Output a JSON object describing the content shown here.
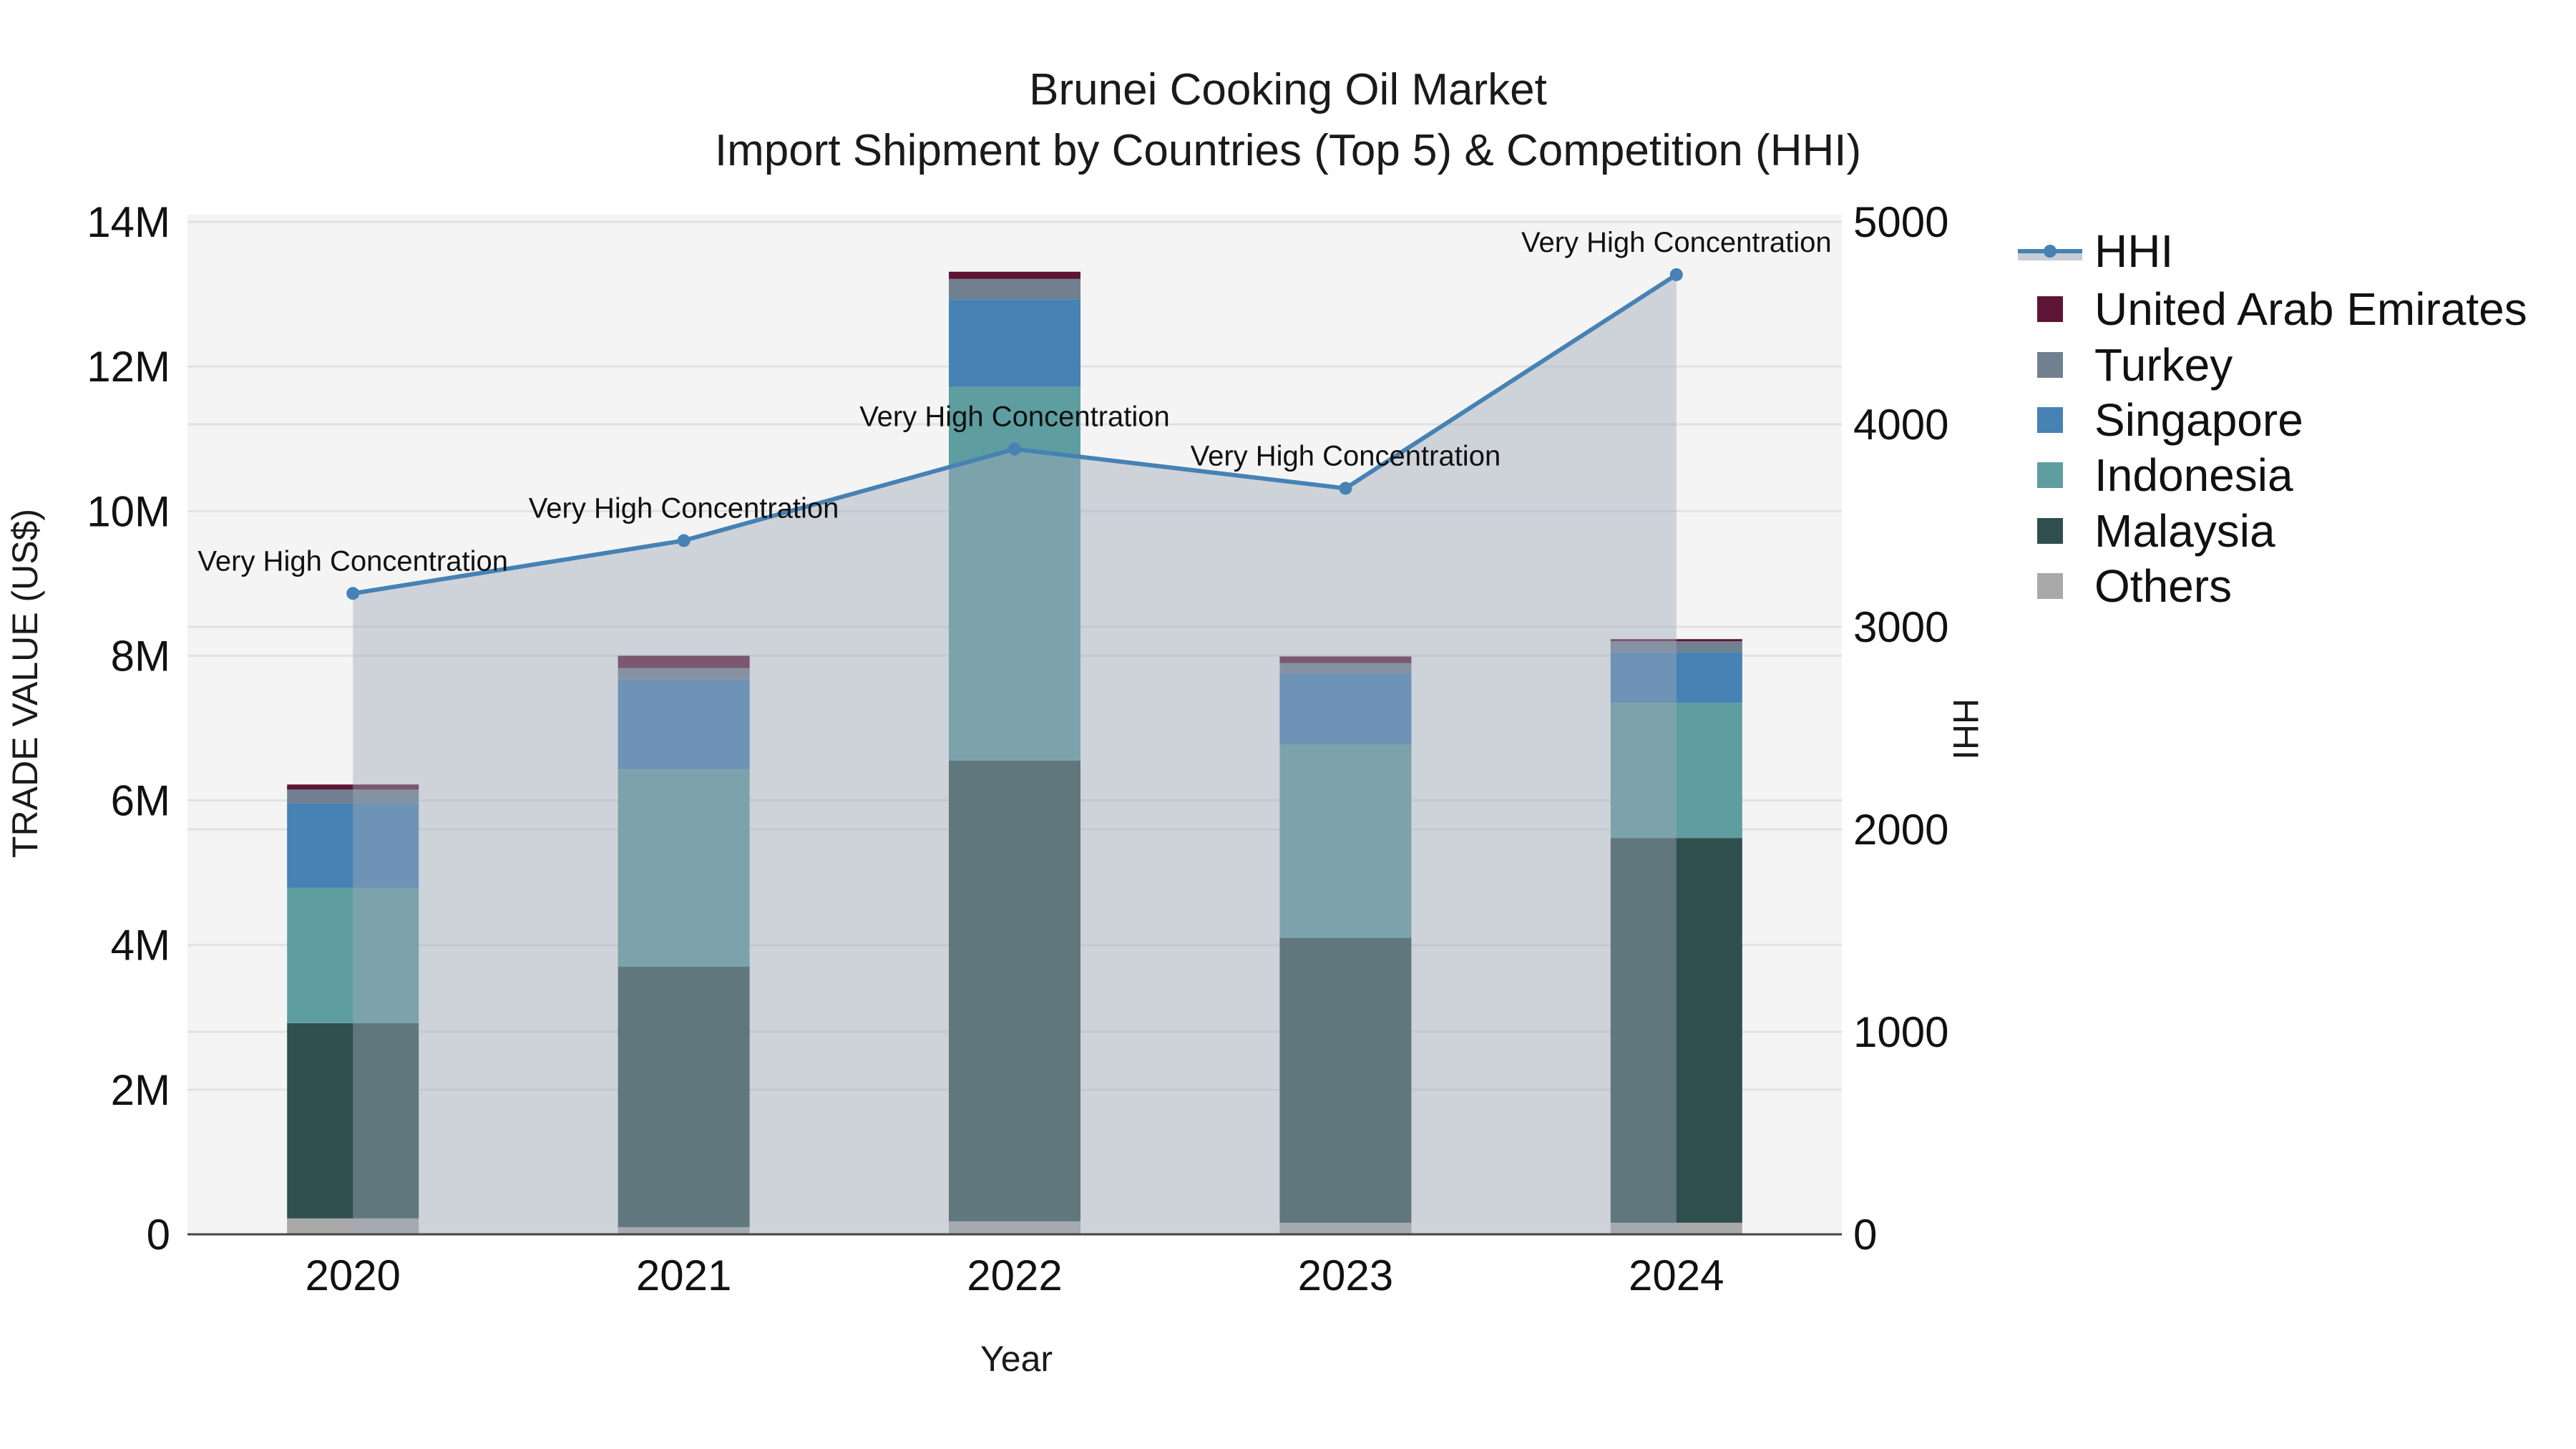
{
  "title": {
    "line1": "Brunei Cooking Oil Market",
    "line2": "Import Shipment by Countries (Top 5) & Competition (HHI)"
  },
  "axes": {
    "x_title": "Year",
    "y_left_title": "TRADE VALUE (US$)",
    "y_right_title": "HHI"
  },
  "legend": {
    "items": [
      {
        "label": "HHI",
        "type": "line",
        "color": "#4682b4"
      },
      {
        "label": "United Arab Emirates",
        "type": "bar",
        "color": "#5e1535"
      },
      {
        "label": "Turkey",
        "type": "bar",
        "color": "#708090"
      },
      {
        "label": "Singapore",
        "type": "bar",
        "color": "#4682b4"
      },
      {
        "label": "Indonesia",
        "type": "bar",
        "color": "#5f9ea0"
      },
      {
        "label": "Malaysia",
        "type": "bar",
        "color": "#2f4f4f"
      },
      {
        "label": "Others",
        "type": "bar",
        "color": "#a9a9a9"
      }
    ]
  },
  "chart_data": {
    "type": "bar",
    "subtype": "stacked bar with line overlay (secondary axis)",
    "title": "Brunei Cooking Oil Market\nImport Shipment by Countries (Top 5) & Competition (HHI)",
    "xlabel": "Year",
    "ylabel": "TRADE VALUE (US$)",
    "y2label": "HHI",
    "categories": [
      "2020",
      "2021",
      "2022",
      "2023",
      "2024"
    ],
    "ylim": [
      0,
      14000000
    ],
    "y_ticks": [
      0,
      2000000,
      4000000,
      6000000,
      8000000,
      10000000,
      12000000,
      14000000
    ],
    "y_tick_labels": [
      "0",
      "2M",
      "4M",
      "6M",
      "8M",
      "10M",
      "12M",
      "14M"
    ],
    "y2lim": [
      0,
      5000
    ],
    "y2_ticks": [
      0,
      1000,
      2000,
      3000,
      4000,
      5000
    ],
    "y2_tick_labels": [
      "0",
      "1000",
      "2000",
      "3000",
      "4000",
      "5000"
    ],
    "grid": true,
    "legend_position": "right",
    "series": [
      {
        "name": "Others",
        "color": "#a9a9a9",
        "values": [
          220000,
          100000,
          180000,
          160000,
          160000
        ]
      },
      {
        "name": "Malaysia",
        "color": "#2f4f4f",
        "values": [
          2700000,
          3600000,
          6370000,
          3940000,
          5320000
        ]
      },
      {
        "name": "Indonesia",
        "color": "#5f9ea0",
        "values": [
          1870000,
          2730000,
          5170000,
          2670000,
          1870000
        ]
      },
      {
        "name": "Singapore",
        "color": "#4682b4",
        "values": [
          1170000,
          1240000,
          1210000,
          990000,
          700000
        ]
      },
      {
        "name": "Turkey",
        "color": "#708090",
        "values": [
          190000,
          160000,
          280000,
          140000,
          150000
        ]
      },
      {
        "name": "United Arab Emirates",
        "color": "#5e1535",
        "values": [
          70000,
          170000,
          100000,
          90000,
          30000
        ]
      }
    ],
    "line_series": {
      "name": "HHI",
      "axis": "y2",
      "color": "#4682b4",
      "fill": "tozeroy",
      "values": [
        3165,
        3426,
        3878,
        3684,
        4739
      ],
      "annotations": [
        "Very High Concentration",
        "Very High Concentration",
        "Very High Concentration",
        "Very High Concentration",
        "Very High Concentration"
      ]
    }
  }
}
